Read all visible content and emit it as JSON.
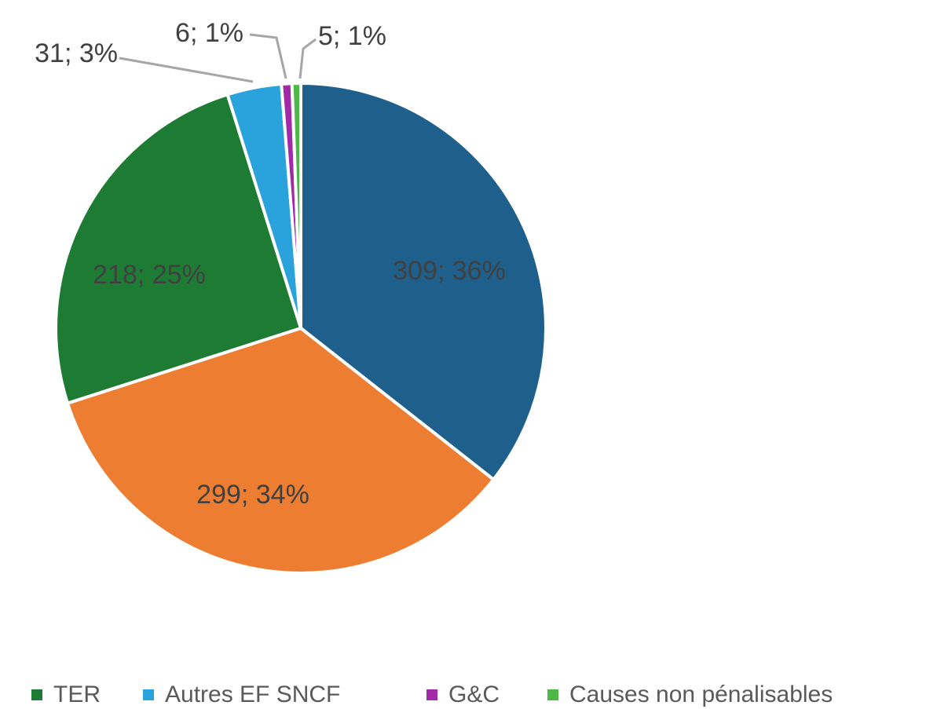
{
  "chart_data": {
    "type": "pie",
    "categories": [
      null,
      null,
      "TER",
      "Autres EF SNCF",
      "G&C",
      "Causes non pénalisables"
    ],
    "values": [
      309,
      299,
      218,
      31,
      6,
      5
    ],
    "value_labels": [
      "309; 36%",
      "299; 34%",
      "218; 25%",
      "31; 3%",
      "6; 1%",
      "5; 1%"
    ],
    "colors": [
      "#1f5f8b",
      "#ed7d31",
      "#1e7b34",
      "#2aa3dc",
      "#a12aa6",
      "#4cb848"
    ],
    "legend": "bottom"
  }
}
